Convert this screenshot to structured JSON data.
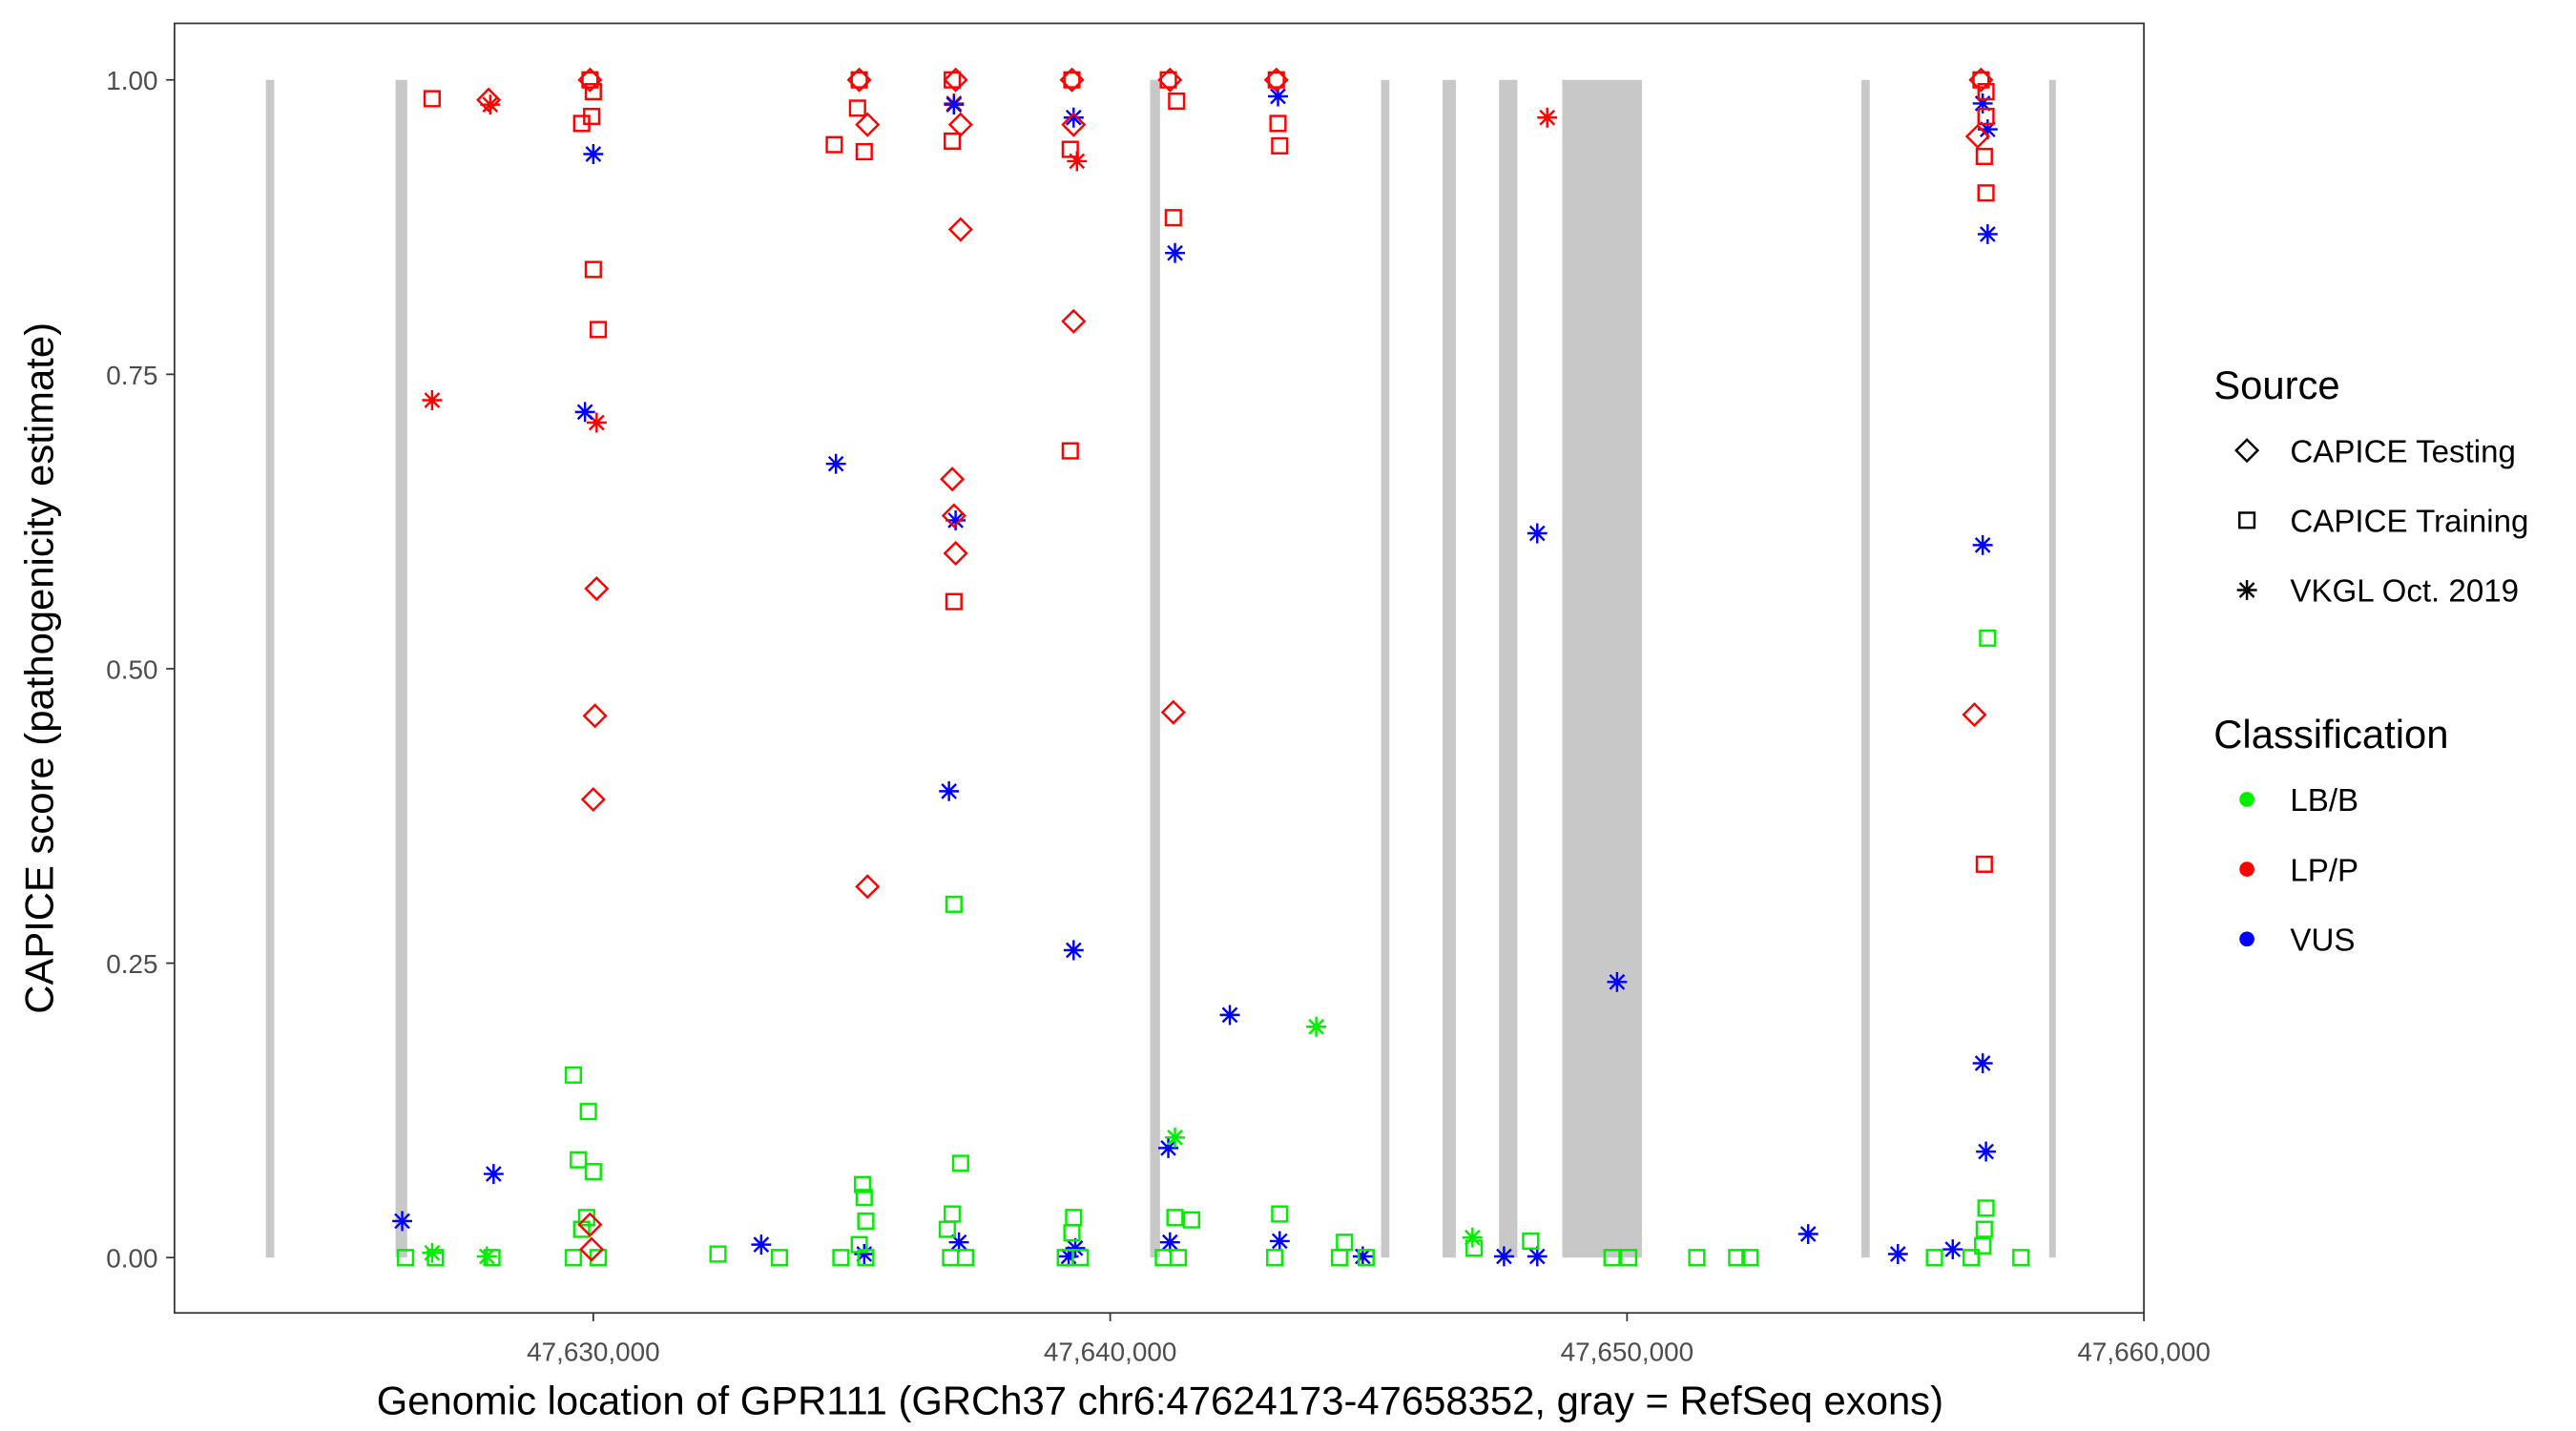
{
  "chart_data": {
    "type": "scatter",
    "xlabel": "Genomic location of GPR111 (GRCh37 chr6:47624173-47658352, gray = RefSeq exons)",
    "ylabel": "CAPICE score (pathogenicity estimate)",
    "xlim": [
      47621897,
      47660000
    ],
    "ylim": [
      -0.047,
      1.048
    ],
    "x_ticks": [
      47630000,
      47640000,
      47650000,
      47660000
    ],
    "x_tick_labels": [
      "47,630,000",
      "47,640,000",
      "47,650,000",
      "47,660,000"
    ],
    "y_ticks": [
      0,
      0.25,
      0.5,
      0.75,
      1.0
    ],
    "y_tick_labels": [
      "0.00",
      "0.25",
      "0.50",
      "0.75",
      "1.00"
    ],
    "grid": false,
    "exon_color": "#c8c8c8",
    "exons": [
      [
        47623666,
        47623826
      ],
      [
        47626174,
        47626399
      ],
      [
        47640772,
        47640965
      ],
      [
        47645241,
        47645402
      ],
      [
        47646431,
        47646688
      ],
      [
        47647524,
        47647878
      ],
      [
        47648746,
        47650289
      ],
      [
        47654534,
        47654695
      ],
      [
        47658167,
        47658296
      ]
    ],
    "legend": {
      "position": "right",
      "source_title": "Source",
      "sources": [
        {
          "name": "CAPICE Testing",
          "shape": "diamond"
        },
        {
          "name": "CAPICE Training",
          "shape": "square"
        },
        {
          "name": "VKGL Oct. 2019",
          "shape": "asterisk"
        }
      ],
      "class_title": "Classification",
      "classes": [
        {
          "name": "LB/B",
          "color": "#00ee00"
        },
        {
          "name": "LP/P",
          "color": "#ff0000"
        },
        {
          "name": "VUS",
          "color": "#0000ff"
        }
      ]
    },
    "series": [
      {
        "source": "VKGL Oct. 2019",
        "classification": "LP/P",
        "points": [
          [
            47628006,
            0.979
          ],
          [
            47626881,
            0.728
          ],
          [
            47630064,
            0.709
          ],
          [
            47639357,
            0.931
          ],
          [
            47648456,
            0.968
          ],
          [
            47636977,
            0.98
          ]
        ]
      },
      {
        "source": "VKGL Oct. 2019",
        "classification": "VUS",
        "points": [
          [
            47626302,
            0.031
          ],
          [
            47628071,
            0.071
          ],
          [
            47629839,
            0.718
          ],
          [
            47630000,
            0.937
          ],
          [
            47633248,
            0.011
          ],
          [
            47634694,
            0.674
          ],
          [
            47635241,
            0.003
          ],
          [
            47636881,
            0.396
          ],
          [
            47637010,
            0.626
          ],
          [
            47637074,
            0.013
          ],
          [
            47636977,
            0.979
          ],
          [
            47639293,
            0.261
          ],
          [
            47639196,
            0.001
          ],
          [
            47639325,
            0.008
          ],
          [
            47639293,
            0.968
          ],
          [
            47641254,
            0.853
          ],
          [
            47641125,
            0.093
          ],
          [
            47641157,
            0.013
          ],
          [
            47642315,
            0.206
          ],
          [
            47643247,
            0.986
          ],
          [
            47643280,
            0.014
          ],
          [
            47644887,
            0.001
          ],
          [
            47647620,
            0.001
          ],
          [
            47648263,
            0.001
          ],
          [
            47648263,
            0.615
          ],
          [
            47649807,
            0.234
          ],
          [
            47653505,
            0.02
          ],
          [
            47655241,
            0.003
          ],
          [
            47656302,
            0.007
          ],
          [
            47656881,
            0.165
          ],
          [
            47656945,
            0.09
          ],
          [
            47656881,
            0.605
          ],
          [
            47656977,
            0.869
          ],
          [
            47656977,
            0.958
          ],
          [
            47656881,
            0.98
          ]
        ]
      },
      {
        "source": "VKGL Oct. 2019",
        "classification": "LB/B",
        "points": [
          [
            47626881,
            0.004
          ],
          [
            47627942,
            0.001
          ],
          [
            47641254,
            0.102
          ],
          [
            47643987,
            0.196
          ],
          [
            47647009,
            0.017
          ]
        ]
      },
      {
        "source": "CAPICE Training",
        "classification": "LP/P",
        "points": [
          [
            47626881,
            0.984
          ],
          [
            47629775,
            0.963
          ],
          [
            47629968,
            0.969
          ],
          [
            47630000,
            0.839
          ],
          [
            47630096,
            0.788
          ],
          [
            47630000,
            0.99
          ],
          [
            47634662,
            0.945
          ],
          [
            47635241,
            0.939
          ],
          [
            47635112,
            0.976
          ],
          [
            47636945,
            0.948
          ],
          [
            47636977,
            0.557
          ],
          [
            47639228,
            0.685
          ],
          [
            47639228,
            0.941
          ],
          [
            47641222,
            0.883
          ],
          [
            47641286,
            0.982
          ],
          [
            47643280,
            0.944
          ],
          [
            47643247,
            0.963
          ],
          [
            47656913,
            0.334
          ],
          [
            47656945,
            0.904
          ],
          [
            47656913,
            0.935
          ],
          [
            47656945,
            0.969
          ],
          [
            47656945,
            0.99
          ],
          [
            47629936,
            1.0
          ],
          [
            47635145,
            1.0
          ],
          [
            47636945,
            1.0
          ],
          [
            47639260,
            1.0
          ],
          [
            47641125,
            1.0
          ],
          [
            47643215,
            1.0
          ],
          [
            47656849,
            1.0
          ]
        ]
      },
      {
        "source": "CAPICE Training",
        "classification": "LB/B",
        "points": [
          [
            47626367,
            0
          ],
          [
            47626945,
            0
          ],
          [
            47628039,
            0
          ],
          [
            47629614,
            0.155
          ],
          [
            47629904,
            0.124
          ],
          [
            47629711,
            0.083
          ],
          [
            47630000,
            0.073
          ],
          [
            47629775,
            0.024
          ],
          [
            47629871,
            0.034
          ],
          [
            47629614,
            0
          ],
          [
            47630096,
            0
          ],
          [
            47632412,
            0.003
          ],
          [
            47633601,
            0
          ],
          [
            47634791,
            0
          ],
          [
            47635209,
            0.062
          ],
          [
            47635241,
            0.051
          ],
          [
            47635273,
            0.031
          ],
          [
            47635145,
            0.011
          ],
          [
            47635273,
            0
          ],
          [
            47636977,
            0.3
          ],
          [
            47637106,
            0.08
          ],
          [
            47636945,
            0.037
          ],
          [
            47636849,
            0.024
          ],
          [
            47636913,
            0
          ],
          [
            47637202,
            0
          ],
          [
            47639293,
            0.034
          ],
          [
            47639260,
            0.021
          ],
          [
            47639132,
            0
          ],
          [
            47639421,
            0
          ],
          [
            47641254,
            0.034
          ],
          [
            47641575,
            0.032
          ],
          [
            47641029,
            0
          ],
          [
            47641318,
            0
          ],
          [
            47643280,
            0.037
          ],
          [
            47643183,
            0
          ],
          [
            47644534,
            0.013
          ],
          [
            47644437,
            0
          ],
          [
            47644952,
            0
          ],
          [
            47647042,
            0.008
          ],
          [
            47648135,
            0.014
          ],
          [
            47649710,
            0
          ],
          [
            47650032,
            0
          ],
          [
            47651350,
            0
          ],
          [
            47652122,
            0
          ],
          [
            47652379,
            0
          ],
          [
            47655948,
            0
          ],
          [
            47656977,
            0.526
          ],
          [
            47656945,
            0.042
          ],
          [
            47656913,
            0.024
          ],
          [
            47656881,
            0.01
          ],
          [
            47657620,
            0
          ],
          [
            47656656,
            0
          ]
        ]
      },
      {
        "source": "CAPICE Testing",
        "classification": "LP/P",
        "points": [
          [
            47627974,
            0.983
          ],
          [
            47630000,
            0.389
          ],
          [
            47630032,
            0.46
          ],
          [
            47630064,
            0.568
          ],
          [
            47629936,
            0.028
          ],
          [
            47629968,
            0.007
          ],
          [
            47635305,
            0.315
          ],
          [
            47635305,
            0.962
          ],
          [
            47636945,
            0.661
          ],
          [
            47636977,
            0.63
          ],
          [
            47637010,
            0.598
          ],
          [
            47637106,
            0.873
          ],
          [
            47637106,
            0.962
          ],
          [
            47639293,
            0.795
          ],
          [
            47639293,
            0.962
          ],
          [
            47641222,
            0.463
          ],
          [
            47656720,
            0.461
          ],
          [
            47656784,
            0.952
          ],
          [
            47629936,
            1.0
          ],
          [
            47635145,
            1.0
          ],
          [
            47637010,
            1.0
          ],
          [
            47639260,
            1.0
          ],
          [
            47641157,
            1.0
          ],
          [
            47643215,
            1.0
          ],
          [
            47656849,
            1.0
          ]
        ]
      }
    ]
  }
}
